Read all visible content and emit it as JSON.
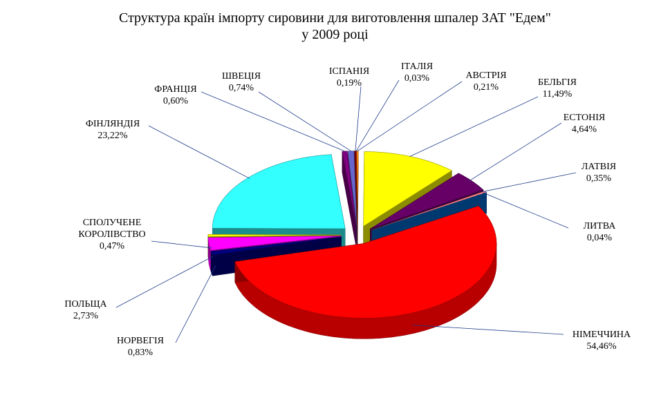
{
  "chart_data": {
    "type": "pie",
    "variant": "3d-exploded",
    "title": [
      "Структура країн імпорту сировини для виготовлення шпалер ЗАТ \"Едем\"",
      "у 2009 році"
    ],
    "unit": "%",
    "legend": "none",
    "slices": [
      {
        "label": "ІТАЛІЯ",
        "value": 0.03,
        "display": "0,03%",
        "color": "#ff00ff"
      },
      {
        "label": "АВСТРІЯ",
        "value": 0.21,
        "display": "0,21%",
        "color": "#ff8000"
      },
      {
        "label": "БЕЛЬГІЯ",
        "value": 11.49,
        "display": "11,49%",
        "color": "#ffff00"
      },
      {
        "label": "ЕСТОНІЯ",
        "value": 4.64,
        "display": "4,64%",
        "color": "#660066"
      },
      {
        "label": "ЛАТВІЯ",
        "value": 0.35,
        "display": "0,35%",
        "color": "#ff8080"
      },
      {
        "label": "ЛИТВА",
        "value": 0.04,
        "display": "0,04%",
        "color": "#0066cc"
      },
      {
        "label": "НІМЕЧЧИНА",
        "value": 54.46,
        "display": "54,46%",
        "color": "#ff0000"
      },
      {
        "label": "НОРВЕГІЯ",
        "value": 0.83,
        "display": "0,83%",
        "color": "#000080"
      },
      {
        "label": "ПОЛЬЩА",
        "value": 2.73,
        "display": "2,73%",
        "color": "#ff00ff"
      },
      {
        "label": "СПОЛУЧЕНЕ КОРОЛІВСТВО",
        "value": 0.47,
        "display": "0,47%",
        "color": "#ffff00"
      },
      {
        "label": "ФІНЛЯНДІЯ",
        "value": 23.22,
        "display": "23,22%",
        "color": "#33ffff"
      },
      {
        "label": "ФРАНЦІЯ",
        "value": 0.6,
        "display": "0,60%",
        "color": "#800080"
      },
      {
        "label": "ШВЕЦІЯ",
        "value": 0.74,
        "display": "0,74%",
        "color": "#6666cc"
      },
      {
        "label": "ІСПАНІЯ",
        "value": 0.19,
        "display": "0,19%",
        "color": "#800000"
      }
    ]
  }
}
